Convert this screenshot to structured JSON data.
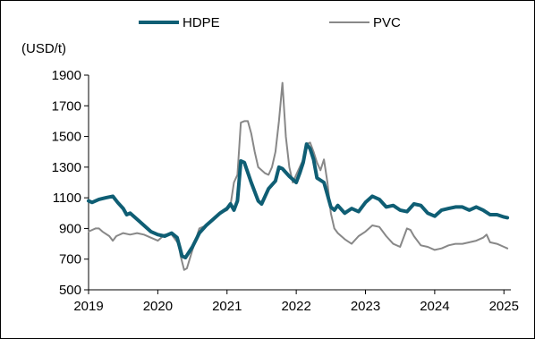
{
  "chart_data": {
    "type": "line",
    "ylabel": "(USD/t)",
    "ylim": [
      500,
      1900
    ],
    "y_ticks": [
      500,
      700,
      900,
      1100,
      1300,
      1500,
      1700,
      1900
    ],
    "xlim": [
      2019,
      2025.1
    ],
    "x_ticks": [
      "2019",
      "2020",
      "2021",
      "2022",
      "2023",
      "2024",
      "2025"
    ],
    "grid": false,
    "legend": "top-center",
    "series": [
      {
        "name": "HDPE",
        "color": "#0f5e74",
        "x": [
          2019.0,
          2019.05,
          2019.15,
          2019.25,
          2019.35,
          2019.42,
          2019.5,
          2019.55,
          2019.6,
          2019.7,
          2019.8,
          2019.9,
          2020.0,
          2020.1,
          2020.2,
          2020.28,
          2020.35,
          2020.4,
          2020.5,
          2020.6,
          2020.7,
          2020.8,
          2020.9,
          2021.0,
          2021.05,
          2021.1,
          2021.15,
          2021.2,
          2021.25,
          2021.35,
          2021.45,
          2021.5,
          2021.6,
          2021.7,
          2021.75,
          2021.8,
          2021.9,
          2022.0,
          2022.05,
          2022.1,
          2022.15,
          2022.2,
          2022.25,
          2022.3,
          2022.4,
          2022.45,
          2022.5,
          2022.55,
          2022.6,
          2022.7,
          2022.8,
          2022.9,
          2023.0,
          2023.1,
          2023.2,
          2023.3,
          2023.4,
          2023.5,
          2023.6,
          2023.7,
          2023.8,
          2023.9,
          2024.0,
          2024.1,
          2024.2,
          2024.3,
          2024.4,
          2024.5,
          2024.6,
          2024.7,
          2024.8,
          2024.9,
          2025.0,
          2025.05
        ],
        "values": [
          1080,
          1070,
          1090,
          1100,
          1110,
          1070,
          1030,
          990,
          1000,
          960,
          920,
          880,
          860,
          850,
          870,
          840,
          720,
          710,
          780,
          870,
          920,
          960,
          1000,
          1030,
          1060,
          1020,
          1080,
          1340,
          1330,
          1200,
          1080,
          1060,
          1160,
          1210,
          1300,
          1290,
          1240,
          1200,
          1260,
          1330,
          1450,
          1420,
          1350,
          1230,
          1200,
          1120,
          1040,
          1020,
          1050,
          1000,
          1030,
          1010,
          1070,
          1110,
          1090,
          1040,
          1050,
          1020,
          1010,
          1060,
          1050,
          1000,
          980,
          1020,
          1030,
          1040,
          1040,
          1020,
          1040,
          1020,
          990,
          990,
          975,
          970
        ]
      },
      {
        "name": "PVC",
        "color": "#888888",
        "x": [
          2019.0,
          2019.05,
          2019.1,
          2019.15,
          2019.2,
          2019.3,
          2019.35,
          2019.4,
          2019.5,
          2019.6,
          2019.7,
          2019.8,
          2019.9,
          2020.0,
          2020.1,
          2020.2,
          2020.3,
          2020.33,
          2020.38,
          2020.42,
          2020.5,
          2020.6,
          2020.7,
          2020.8,
          2020.9,
          2021.0,
          2021.05,
          2021.1,
          2021.15,
          2021.2,
          2021.25,
          2021.3,
          2021.35,
          2021.4,
          2021.45,
          2021.5,
          2021.55,
          2021.6,
          2021.65,
          2021.7,
          2021.75,
          2021.8,
          2021.85,
          2021.9,
          2021.95,
          2022.0,
          2022.05,
          2022.1,
          2022.15,
          2022.2,
          2022.25,
          2022.3,
          2022.35,
          2022.4,
          2022.45,
          2022.5,
          2022.55,
          2022.6,
          2022.7,
          2022.8,
          2022.9,
          2023.0,
          2023.1,
          2023.2,
          2023.3,
          2023.4,
          2023.5,
          2023.6,
          2023.65,
          2023.7,
          2023.8,
          2023.9,
          2024.0,
          2024.1,
          2024.2,
          2024.3,
          2024.4,
          2024.5,
          2024.6,
          2024.7,
          2024.75,
          2024.8,
          2024.9,
          2025.0,
          2025.05
        ],
        "values": [
          880,
          890,
          900,
          900,
          880,
          850,
          820,
          850,
          870,
          860,
          870,
          860,
          840,
          820,
          860,
          860,
          800,
          720,
          630,
          640,
          760,
          900,
          920,
          960,
          1000,
          1020,
          1050,
          1200,
          1250,
          1590,
          1600,
          1600,
          1520,
          1400,
          1300,
          1280,
          1260,
          1250,
          1300,
          1400,
          1600,
          1850,
          1500,
          1300,
          1200,
          1250,
          1300,
          1350,
          1450,
          1460,
          1400,
          1330,
          1280,
          1350,
          1200,
          1000,
          900,
          870,
          830,
          800,
          850,
          880,
          920,
          910,
          850,
          800,
          780,
          900,
          890,
          850,
          790,
          780,
          760,
          770,
          790,
          800,
          800,
          810,
          820,
          840,
          860,
          810,
          800,
          780,
          770
        ]
      }
    ]
  }
}
